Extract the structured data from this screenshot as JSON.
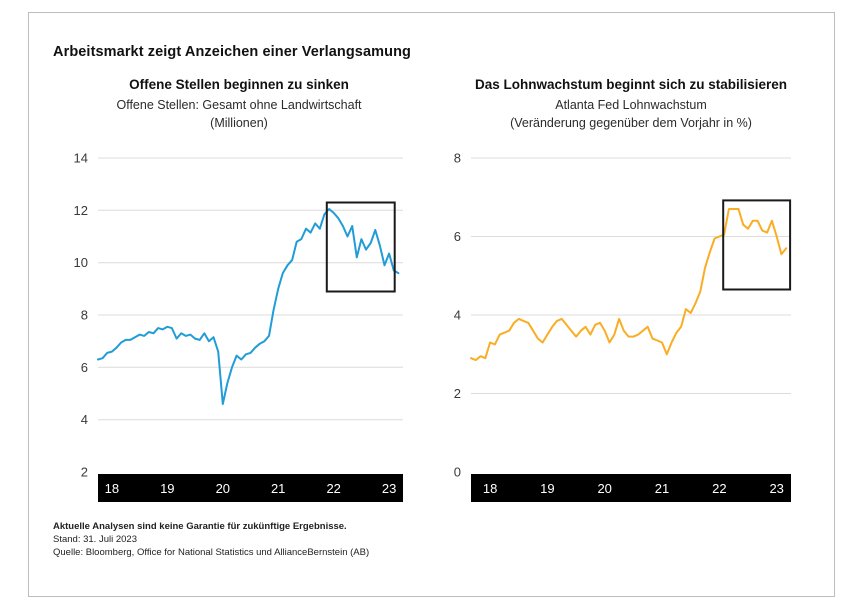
{
  "page": {
    "title": "Arbeitsmarkt zeigt Anzeichen einer Verlangsamung"
  },
  "footer": {
    "disclaimer": "Aktuelle Analysen sind keine Garantie für zukünftige Ergebnisse.",
    "as_of": "Stand: 31. Juli 2023",
    "source": "Quelle: Bloomberg, Office for National Statistics und AllianceBernstein (AB)"
  },
  "colors": {
    "left_line": "#219CD7",
    "right_line": "#FAAD24",
    "gridline": "#DCDCDC",
    "axis_text": "#3A3A3A",
    "x_axis_bar": "#000000",
    "x_axis_text": "#FFFFFF",
    "highlight_box": "#1A1A1A",
    "panel_border": "#BDBDBD"
  },
  "chart_data": [
    {
      "type": "line",
      "title": "Offene Stellen beginnen zu sinken",
      "subtitle1": "Offene Stellen: Gesamt ohne Landwirtschaft",
      "subtitle2": "(Millionen)",
      "x_start": "2018-01",
      "x_end": "2023-06",
      "frequency": "monthly",
      "x_tick_labels": [
        "18",
        "19",
        "20",
        "21",
        "22",
        "23"
      ],
      "ylim": [
        2,
        14
      ],
      "yticks": [
        14,
        12,
        10,
        8,
        6,
        4,
        2
      ],
      "grid": true,
      "legend": "none",
      "line_color": "#219CD7",
      "values": [
        6.3,
        6.35,
        6.55,
        6.6,
        6.75,
        6.95,
        7.05,
        7.05,
        7.15,
        7.25,
        7.2,
        7.35,
        7.3,
        7.5,
        7.45,
        7.55,
        7.5,
        7.1,
        7.3,
        7.2,
        7.25,
        7.1,
        7.05,
        7.3,
        7.0,
        7.15,
        6.6,
        4.6,
        5.4,
        6.0,
        6.45,
        6.3,
        6.5,
        6.55,
        6.75,
        6.9,
        7.0,
        7.2,
        8.2,
        9.0,
        9.6,
        9.9,
        10.1,
        10.8,
        10.9,
        11.3,
        11.15,
        11.5,
        11.3,
        11.85,
        12.05,
        11.9,
        11.7,
        11.4,
        11.0,
        11.4,
        10.2,
        10.9,
        10.5,
        10.75,
        11.25,
        10.65,
        9.9,
        10.35,
        9.7,
        9.6
      ],
      "highlight_box": {
        "x0_month": 49.5,
        "x1_month": 64.2,
        "y0": 8.9,
        "y1": 12.3
      }
    },
    {
      "type": "line",
      "title": "Das Lohnwachstum beginnt sich zu stabilisieren",
      "subtitle1": "Atlanta Fed Lohnwachstum",
      "subtitle2": "(Veränderung gegenüber dem Vorjahr in %)",
      "x_start": "2018-01",
      "x_end": "2023-07",
      "frequency": "monthly",
      "x_tick_labels": [
        "18",
        "19",
        "20",
        "21",
        "22",
        "23"
      ],
      "ylim": [
        0,
        8
      ],
      "yticks": [
        8,
        6,
        4,
        2,
        0
      ],
      "grid": true,
      "legend": "none",
      "line_color": "#FAAD24",
      "values": [
        2.9,
        2.85,
        2.95,
        2.9,
        3.3,
        3.25,
        3.5,
        3.55,
        3.6,
        3.8,
        3.9,
        3.85,
        3.8,
        3.6,
        3.4,
        3.3,
        3.5,
        3.7,
        3.85,
        3.9,
        3.75,
        3.6,
        3.45,
        3.6,
        3.7,
        3.5,
        3.75,
        3.8,
        3.6,
        3.3,
        3.5,
        3.9,
        3.6,
        3.45,
        3.45,
        3.5,
        3.6,
        3.7,
        3.4,
        3.35,
        3.3,
        3.0,
        3.3,
        3.55,
        3.7,
        4.15,
        4.05,
        4.3,
        4.6,
        5.2,
        5.6,
        5.95,
        6.0,
        6.05,
        6.7,
        6.7,
        6.7,
        6.3,
        6.2,
        6.4,
        6.4,
        6.15,
        6.1,
        6.4,
        6.0,
        5.55,
        5.7
      ],
      "highlight_box": {
        "x0_month": 52.8,
        "x1_month": 66.8,
        "y0": 4.65,
        "y1": 6.92
      }
    }
  ]
}
